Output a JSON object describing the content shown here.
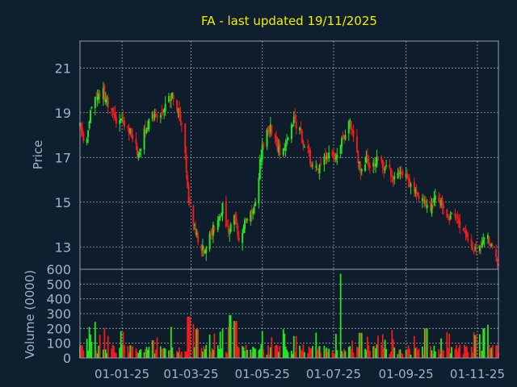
{
  "colors": {
    "background": "#0f1f30",
    "plot_background": "#0e1c2c",
    "grid": "#c8d0d8",
    "frame": "#8fa0b0",
    "title": "#f0f000",
    "axis_text": "#9ab4cc",
    "up": "#22e622",
    "down": "#ee1c1c"
  },
  "chart_data": [
    {
      "type": "candlestick",
      "title": "FA - last updated 19/11/2025",
      "ylabel": "Price",
      "xlim": [
        "2024-11-26",
        "2025-11-19"
      ],
      "ylim": [
        12,
        22.2
      ],
      "yticks": [
        13,
        15,
        17,
        19,
        21
      ],
      "xticks": [
        {
          "date": "2025-01-01",
          "label": "01-01-25"
        },
        {
          "date": "2025-03-01",
          "label": "01-03-25"
        },
        {
          "date": "2025-05-01",
          "label": "01-05-25"
        },
        {
          "date": "2025-07-01",
          "label": "01-07-25"
        },
        {
          "date": "2025-09-01",
          "label": "01-09-25"
        },
        {
          "date": "2025-11-01",
          "label": "01-11-25"
        }
      ],
      "grid": true,
      "close_anchors": [
        [
          "2024-11-26",
          18.5
        ],
        [
          "2024-11-30",
          17.3
        ],
        [
          "2024-12-05",
          18.9
        ],
        [
          "2024-12-10",
          19.7
        ],
        [
          "2024-12-16",
          19.9
        ],
        [
          "2024-12-21",
          19.2
        ],
        [
          "2024-12-26",
          18.6
        ],
        [
          "2024-12-31",
          18.8
        ],
        [
          "2025-01-05",
          18.4
        ],
        [
          "2025-01-10",
          17.9
        ],
        [
          "2025-01-15",
          17.1
        ],
        [
          "2025-01-20",
          18.2
        ],
        [
          "2025-01-25",
          18.7
        ],
        [
          "2025-01-30",
          19.0
        ],
        [
          "2025-02-04",
          18.8
        ],
        [
          "2025-02-09",
          19.5
        ],
        [
          "2025-02-13",
          19.9
        ],
        [
          "2025-02-18",
          18.9
        ],
        [
          "2025-02-22",
          18.3
        ],
        [
          "2025-02-24",
          17.2
        ],
        [
          "2025-02-27",
          15.0
        ],
        [
          "2025-03-04",
          13.8
        ],
        [
          "2025-03-08",
          13.2
        ],
        [
          "2025-03-12",
          12.8
        ],
        [
          "2025-03-18",
          13.6
        ],
        [
          "2025-03-24",
          14.2
        ],
        [
          "2025-03-28",
          14.8
        ],
        [
          "2025-04-02",
          13.5
        ],
        [
          "2025-04-07",
          14.6
        ],
        [
          "2025-04-11",
          13.2
        ],
        [
          "2025-04-16",
          14.0
        ],
        [
          "2025-04-21",
          14.4
        ],
        [
          "2025-04-26",
          14.9
        ],
        [
          "2025-04-29",
          16.7
        ],
        [
          "2025-05-03",
          18.0
        ],
        [
          "2025-05-08",
          18.3
        ],
        [
          "2025-05-13",
          17.5
        ],
        [
          "2025-05-18",
          17.0
        ],
        [
          "2025-05-23",
          18.1
        ],
        [
          "2025-05-28",
          18.6
        ],
        [
          "2025-06-02",
          18.1
        ],
        [
          "2025-06-07",
          17.5
        ],
        [
          "2025-06-12",
          16.7
        ],
        [
          "2025-06-17",
          16.4
        ],
        [
          "2025-06-22",
          17.0
        ],
        [
          "2025-06-27",
          17.3
        ],
        [
          "2025-07-02",
          17.0
        ],
        [
          "2025-07-07",
          17.6
        ],
        [
          "2025-07-11",
          18.2
        ],
        [
          "2025-07-15",
          18.5
        ],
        [
          "2025-07-19",
          17.5
        ],
        [
          "2025-07-24",
          16.4
        ],
        [
          "2025-07-29",
          16.9
        ],
        [
          "2025-08-03",
          16.5
        ],
        [
          "2025-08-08",
          17.1
        ],
        [
          "2025-08-13",
          16.6
        ],
        [
          "2025-08-18",
          16.3
        ],
        [
          "2025-08-23",
          16.0
        ],
        [
          "2025-08-28",
          16.3
        ],
        [
          "2025-09-02",
          16.0
        ],
        [
          "2025-09-07",
          15.7
        ],
        [
          "2025-09-12",
          15.3
        ],
        [
          "2025-09-17",
          15.0
        ],
        [
          "2025-09-22",
          14.6
        ],
        [
          "2025-09-27",
          15.4
        ],
        [
          "2025-10-02",
          14.8
        ],
        [
          "2025-10-07",
          14.1
        ],
        [
          "2025-10-12",
          14.4
        ],
        [
          "2025-10-17",
          14.0
        ],
        [
          "2025-10-22",
          13.5
        ],
        [
          "2025-10-27",
          13.1
        ],
        [
          "2025-11-01",
          12.9
        ],
        [
          "2025-11-06",
          13.3
        ],
        [
          "2025-11-10",
          13.5
        ],
        [
          "2025-11-14",
          13.0
        ],
        [
          "2025-11-19",
          12.3
        ]
      ]
    },
    {
      "type": "bar",
      "ylabel": "Volume (0000)",
      "ylim": [
        0,
        600
      ],
      "yticks": [
        0,
        100,
        200,
        300,
        400,
        500,
        600
      ],
      "grid": true,
      "volume_level": 55,
      "volume_spikes": [
        [
          "2024-12-08",
          245
        ],
        [
          "2025-01-27",
          120
        ],
        [
          "2025-02-27",
          280
        ],
        [
          "2025-03-02",
          230
        ],
        [
          "2025-03-06",
          195
        ],
        [
          "2025-04-04",
          290
        ],
        [
          "2025-04-08",
          250
        ],
        [
          "2025-05-18",
          195
        ],
        [
          "2025-07-06",
          570
        ],
        [
          "2025-07-24",
          170
        ],
        [
          "2025-09-18",
          200
        ],
        [
          "2025-10-31",
          155
        ],
        [
          "2025-11-07",
          200
        ]
      ]
    }
  ]
}
